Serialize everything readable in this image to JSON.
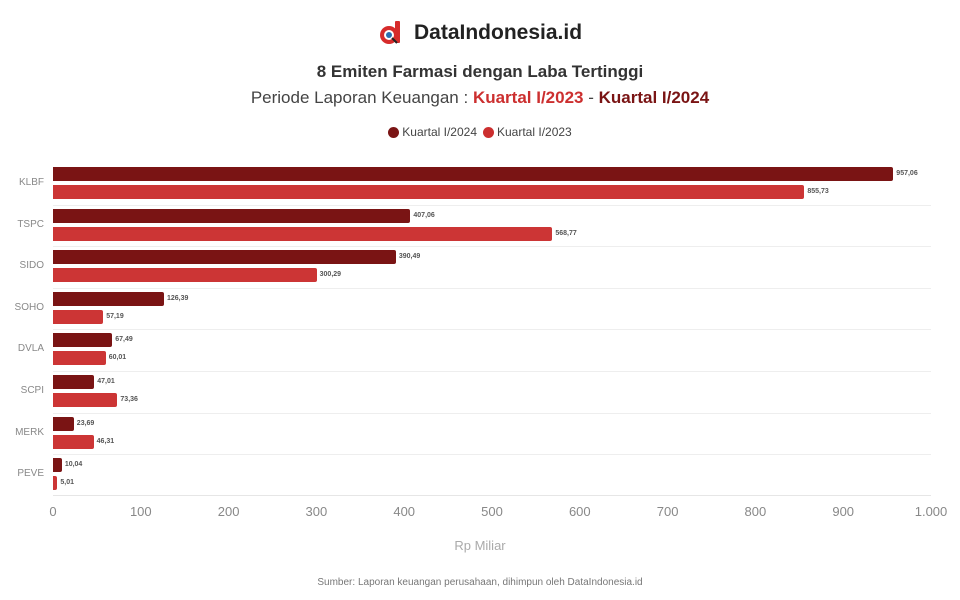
{
  "header": {
    "brand": "DataIndonesia.id",
    "title": "8 Emiten Farmasi dengan Laba Tertinggi",
    "subtitle_prefix": "Periode Laporan Keuangan : ",
    "subtitle_period1": "Kuartal I/2023",
    "subtitle_sep": " - ",
    "subtitle_period2": "Kuartal I/2024"
  },
  "legend": [
    {
      "label": "Kuartal I/2024",
      "color": "#7a1414"
    },
    {
      "label": "Kuartal I/2023",
      "color": "#cc2f2f"
    }
  ],
  "colors": {
    "q2024": "#7a1414",
    "q2023": "#cc3535"
  },
  "chart_data": {
    "type": "bar",
    "orientation": "horizontal",
    "title": "8 Emiten Farmasi dengan Laba Tertinggi",
    "subtitle": "Periode Laporan Keuangan : Kuartal I/2023 - Kuartal I/2024",
    "categories": [
      "KLBF",
      "TSPC",
      "SIDO",
      "SOHO",
      "DVLA",
      "SCPI",
      "MERK",
      "PEVE"
    ],
    "series": [
      {
        "name": "Kuartal I/2024",
        "values": [
          957.06,
          407.06,
          390.49,
          126.39,
          67.49,
          47.01,
          23.69,
          10.04
        ]
      },
      {
        "name": "Kuartal I/2023",
        "values": [
          855.73,
          568.77,
          300.29,
          57.19,
          60.01,
          73.36,
          46.31,
          5.01
        ]
      }
    ],
    "value_labels": {
      "Kuartal I/2024": [
        "957,06",
        "407,06",
        "390,49",
        "126,39",
        "67,49",
        "47,01",
        "23,69",
        "10,04"
      ],
      "Kuartal I/2023": [
        "855,73",
        "568,77",
        "300,29",
        "57,19",
        "60,01",
        "73,36",
        "46,31",
        "5,01"
      ]
    },
    "xlabel": "Rp Miliar",
    "ylabel": "",
    "xlim": [
      0,
      1000
    ],
    "xticks": [
      "0",
      "100",
      "200",
      "300",
      "400",
      "500",
      "600",
      "700",
      "800",
      "900",
      "1.000"
    ],
    "grid": true,
    "legend_position": "top"
  },
  "footer": {
    "source": "Sumber: Laporan keuangan perusahaan, dihimpun oleh DataIndonesia.id"
  }
}
